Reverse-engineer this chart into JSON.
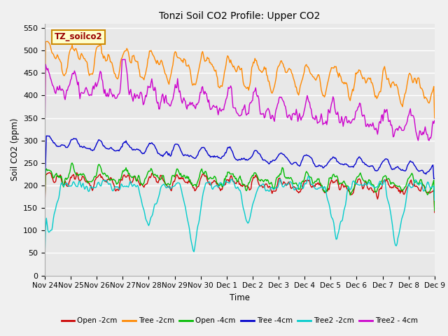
{
  "title": "Tonzi Soil CO2 Profile: Upper CO2",
  "ylabel": "Soil CO2 (ppm)",
  "xlabel": "Time",
  "ylim": [
    0,
    560
  ],
  "yticks": [
    0,
    50,
    100,
    150,
    200,
    250,
    300,
    350,
    400,
    450,
    500,
    550
  ],
  "legend_label": "TZ_soilco2",
  "fig_bg": "#f0f0f0",
  "plot_bg": "#e8e8e8",
  "series": {
    "Open_2cm": {
      "color": "#cc0000",
      "label": "Open -2cm"
    },
    "Tree_2cm": {
      "color": "#ff8800",
      "label": "Tree -2cm"
    },
    "Open_4cm": {
      "color": "#00bb00",
      "label": "Open -4cm"
    },
    "Tree_4cm": {
      "color": "#0000cc",
      "label": "Tree -4cm"
    },
    "Tree2_2cm": {
      "color": "#00cccc",
      "label": "Tree2 -2cm"
    },
    "Tree2_4cm": {
      "color": "#cc00cc",
      "label": "Tree2 - 4cm"
    }
  },
  "xtick_labels": [
    "Nov 24",
    "Nov 25",
    "Nov 26",
    "Nov 27",
    "Nov 28",
    "Nov 29",
    "Nov 30",
    "Dec 1",
    "Dec 2",
    "Dec 3",
    "Dec 4",
    "Dec 5",
    "Dec 6",
    "Dec 7",
    "Dec 8",
    "Dec 9"
  ],
  "n_points": 500
}
